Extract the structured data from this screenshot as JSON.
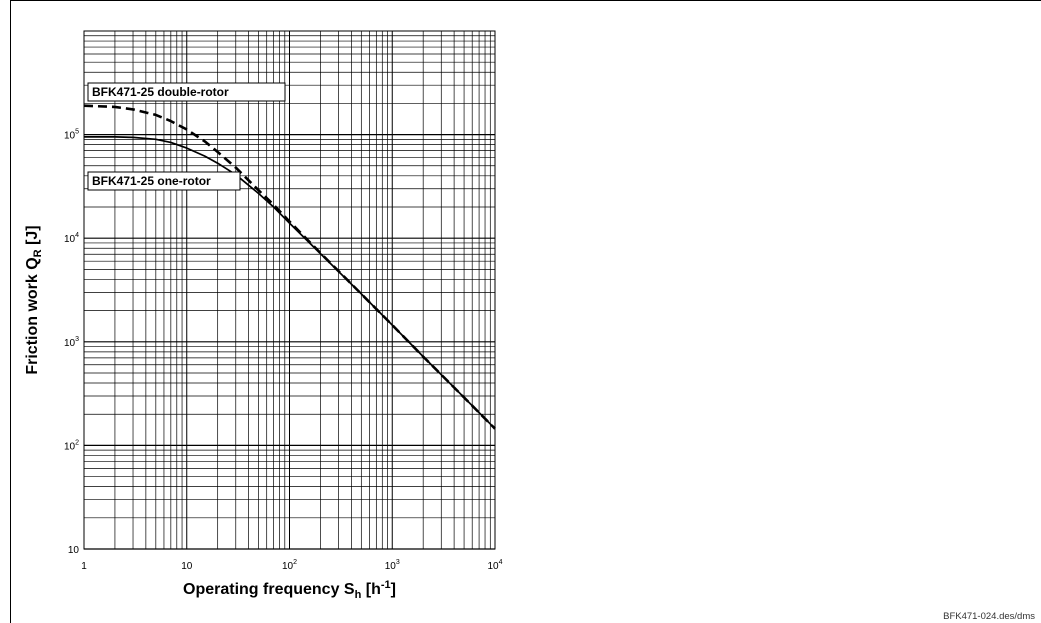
{
  "chart_data": {
    "type": "line",
    "log_x": true,
    "log_y": true,
    "grid": true,
    "xlim": [
      1,
      10000
    ],
    "ylim": [
      10,
      1000000
    ],
    "x_tick_labels": [
      {
        "value": 1,
        "base": "1",
        "exp": ""
      },
      {
        "value": 10,
        "base": "10",
        "exp": ""
      },
      {
        "value": 100,
        "base": "10",
        "exp": "2"
      },
      {
        "value": 1000,
        "base": "10",
        "exp": "3"
      },
      {
        "value": 10000,
        "base": "10",
        "exp": "4"
      }
    ],
    "y_tick_labels": [
      {
        "value": 10,
        "base": "10",
        "exp": ""
      },
      {
        "value": 100,
        "base": "10",
        "exp": "2"
      },
      {
        "value": 1000,
        "base": "10",
        "exp": "3"
      },
      {
        "value": 10000,
        "base": "10",
        "exp": "4"
      },
      {
        "value": 100000,
        "base": "10",
        "exp": "5"
      }
    ],
    "xlabel": {
      "main": "Operating frequency S",
      "sub": "h",
      "unit_open": " [h",
      "unit_exp": "-1",
      "unit_close": "]"
    },
    "ylabel": {
      "main": "Friction work  Q",
      "sub": "R",
      "unit": " [J]"
    },
    "series": [
      {
        "name": "BFK471-25 double-rotor",
        "style": "dashed",
        "color": "#000000",
        "x": [
          1,
          2,
          3,
          5,
          7,
          10,
          15,
          20,
          30,
          50,
          70,
          100,
          200,
          500,
          1000,
          2000,
          5000,
          10000
        ],
        "y": [
          190000,
          185000,
          175000,
          155000,
          135000,
          112000,
          86000,
          68000,
          48000,
          29000,
          21000,
          14500,
          7200,
          2900,
          1450,
          720,
          290,
          145
        ]
      },
      {
        "name": "BFK471-25 one-rotor",
        "style": "solid",
        "color": "#000000",
        "x": [
          1,
          2,
          3,
          5,
          7,
          10,
          15,
          20,
          30,
          50,
          70,
          100,
          200,
          500,
          1000,
          2000,
          5000,
          10000
        ],
        "y": [
          95000,
          95000,
          94000,
          90000,
          84000,
          74000,
          62000,
          53000,
          41000,
          27000,
          20000,
          14000,
          7100,
          2900,
          1450,
          720,
          290,
          145
        ]
      }
    ]
  },
  "source_note": "BFK471-024.des/dms"
}
